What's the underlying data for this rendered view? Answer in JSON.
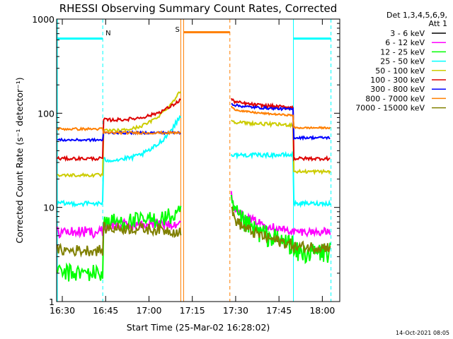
{
  "chart_data": {
    "type": "line",
    "title": "RHESSI Observing Summary Count Rates, Corrected",
    "xlabel": "Start Time (25-Mar-02 16:28:02)",
    "ylabel": "Corrected Count Rate (s⁻¹ detector⁻¹)",
    "x_start": "16:28:02",
    "xlim_minutes": [
      0,
      98
    ],
    "ylim": [
      1,
      1000
    ],
    "y_scale": "log",
    "x_ticks": [
      "16:30",
      "16:45",
      "17:00",
      "17:15",
      "17:30",
      "17:45",
      "18:00"
    ],
    "y_ticks": [
      "1",
      "10",
      "100",
      "1000"
    ],
    "legend_header": [
      "Det 1,3,4,5,6,9,",
      "Att 1"
    ],
    "legend_position": "outside-right",
    "series": [
      {
        "name": "3 - 6 keV",
        "color": "#000000"
      },
      {
        "name": "6 - 12 keV",
        "color": "#ff00ff"
      },
      {
        "name": "12 - 25 keV",
        "color": "#00ff00"
      },
      {
        "name": "25 - 50 keV",
        "color": "#00ffff"
      },
      {
        "name": "50 - 100 keV",
        "color": "#cccc00"
      },
      {
        "name": "100 - 300 keV",
        "color": "#dd0000"
      },
      {
        "name": "300 - 800 keV",
        "color": "#0000ff"
      },
      {
        "name": "800 - 7000 keV",
        "color": "#ff7f00"
      },
      {
        "name": "7000 - 15000 keV",
        "color": "#808000"
      }
    ],
    "annotations": [
      {
        "label": "N",
        "start": "16:28",
        "end": "16:44",
        "end2": "17:50",
        "end3": "18:03",
        "color": "#00ffff"
      },
      {
        "label": "S",
        "start": "17:12",
        "end": "17:28",
        "color": "#ff7f00"
      }
    ]
  },
  "footer": {
    "timestamp": "14-Oct-2021 08:05"
  }
}
